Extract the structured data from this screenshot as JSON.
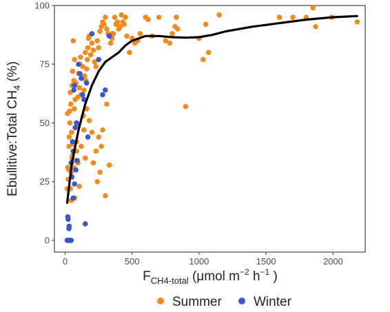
{
  "chart_data": {
    "type": "scatter",
    "title": "",
    "xlabel": {
      "main": "F",
      "sub": "CH4-total",
      "units_open": " (μmol m",
      "sup1": "−2",
      "units_mid": " h",
      "sup2": "−1",
      "units_close": " )"
    },
    "ylabel": {
      "main": "Ebullitive:Total CH",
      "sub": "4",
      "units": " (%)"
    },
    "xlim": [
      -80,
      2240
    ],
    "ylim": [
      -5,
      100
    ],
    "x_ticks": [
      0,
      500,
      1000,
      1500,
      2000
    ],
    "y_ticks": [
      0,
      25,
      50,
      75,
      100
    ],
    "grid": false,
    "legend_position": "bottom",
    "colors": {
      "Summer": "#f28b1c",
      "Winter": "#3558d4",
      "smooth": "#000000",
      "frame": "#333333"
    },
    "series": [
      {
        "name": "Summer",
        "x": [
          15,
          20,
          25,
          30,
          18,
          22,
          28,
          35,
          40,
          45,
          50,
          38,
          42,
          55,
          60,
          48,
          52,
          65,
          70,
          58,
          62,
          75,
          80,
          68,
          72,
          85,
          90,
          95,
          100,
          105,
          110,
          115,
          120,
          125,
          130,
          135,
          140,
          145,
          150,
          155,
          160,
          165,
          170,
          175,
          180,
          190,
          200,
          210,
          220,
          230,
          240,
          250,
          260,
          270,
          280,
          290,
          300,
          310,
          320,
          330,
          340,
          350,
          360,
          370,
          380,
          390,
          400,
          410,
          420,
          430,
          440,
          450,
          460,
          480,
          500,
          520,
          540,
          560,
          600,
          620,
          650,
          700,
          750,
          780,
          800,
          820,
          830,
          840,
          900,
          1000,
          1030,
          1050,
          1070,
          1150,
          1600,
          1700,
          1800,
          1850,
          1870,
          1990,
          2180,
          120,
          150,
          200,
          260,
          300,
          330,
          350,
          240,
          270,
          180,
          160,
          140,
          95,
          55,
          35,
          45,
          65,
          28,
          33,
          85,
          105,
          210,
          230,
          250,
          280,
          310
        ],
        "y": [
          22,
          31,
          0,
          44,
          54,
          26,
          40,
          50,
          22,
          29,
          35,
          63,
          58,
          72,
          85,
          46,
          66,
          68,
          77,
          41,
          31,
          60,
          67,
          56,
          18,
          42,
          49,
          61,
          71,
          65,
          75,
          78,
          62,
          69,
          74,
          53,
          64,
          70,
          80,
          68,
          73,
          77,
          82,
          86,
          87,
          79,
          84,
          81,
          76,
          74,
          85,
          82,
          89,
          91,
          93,
          92,
          95,
          90,
          88,
          87,
          84,
          86,
          88,
          95,
          92,
          93,
          90,
          91,
          96,
          93,
          92,
          95,
          87,
          80,
          86,
          84,
          85,
          88,
          95,
          94,
          87,
          95,
          85,
          84,
          88,
          91,
          95,
          90,
          57,
          86,
          77,
          92,
          80,
          96,
          95,
          95,
          95,
          99,
          91,
          95,
          93,
          40,
          35,
          46,
          29,
          19,
          32,
          88,
          25,
          40,
          51,
          56,
          47,
          33,
          36,
          0,
          17,
          34,
          30,
          55,
          38,
          23,
          33,
          38,
          44,
          47,
          58
        ],
        "color": "Summer"
      },
      {
        "name": "Winter",
        "x": [
          15,
          18,
          20,
          22,
          25,
          28,
          30,
          40,
          45,
          50,
          55,
          60,
          65,
          70,
          75,
          80,
          85,
          90,
          100,
          110,
          120,
          130,
          140,
          150,
          160,
          170,
          200,
          250,
          280,
          300,
          330,
          60,
          70,
          45
        ],
        "y": [
          0,
          0,
          10,
          9,
          0,
          5,
          6,
          0,
          0,
          27,
          42,
          38,
          64,
          66,
          48,
          30,
          50,
          34,
          75,
          71,
          69,
          62,
          60,
          7,
          67,
          44,
          88,
          77,
          62,
          64,
          87,
          18,
          24,
          33
        ],
        "color": "Winter"
      }
    ],
    "smooth_curve": {
      "x": [
        15,
        50,
        100,
        150,
        200,
        250,
        300,
        350,
        400,
        450,
        500,
        600,
        700,
        800,
        900,
        1000,
        1100,
        1200,
        1400,
        1600,
        1800,
        2000,
        2180
      ],
      "y": [
        16,
        33,
        47,
        58,
        66,
        72,
        76,
        78,
        80,
        83,
        85,
        87,
        87,
        86.5,
        86.3,
        86.5,
        87.5,
        89,
        91,
        92.5,
        94,
        95,
        95.5
      ]
    }
  }
}
